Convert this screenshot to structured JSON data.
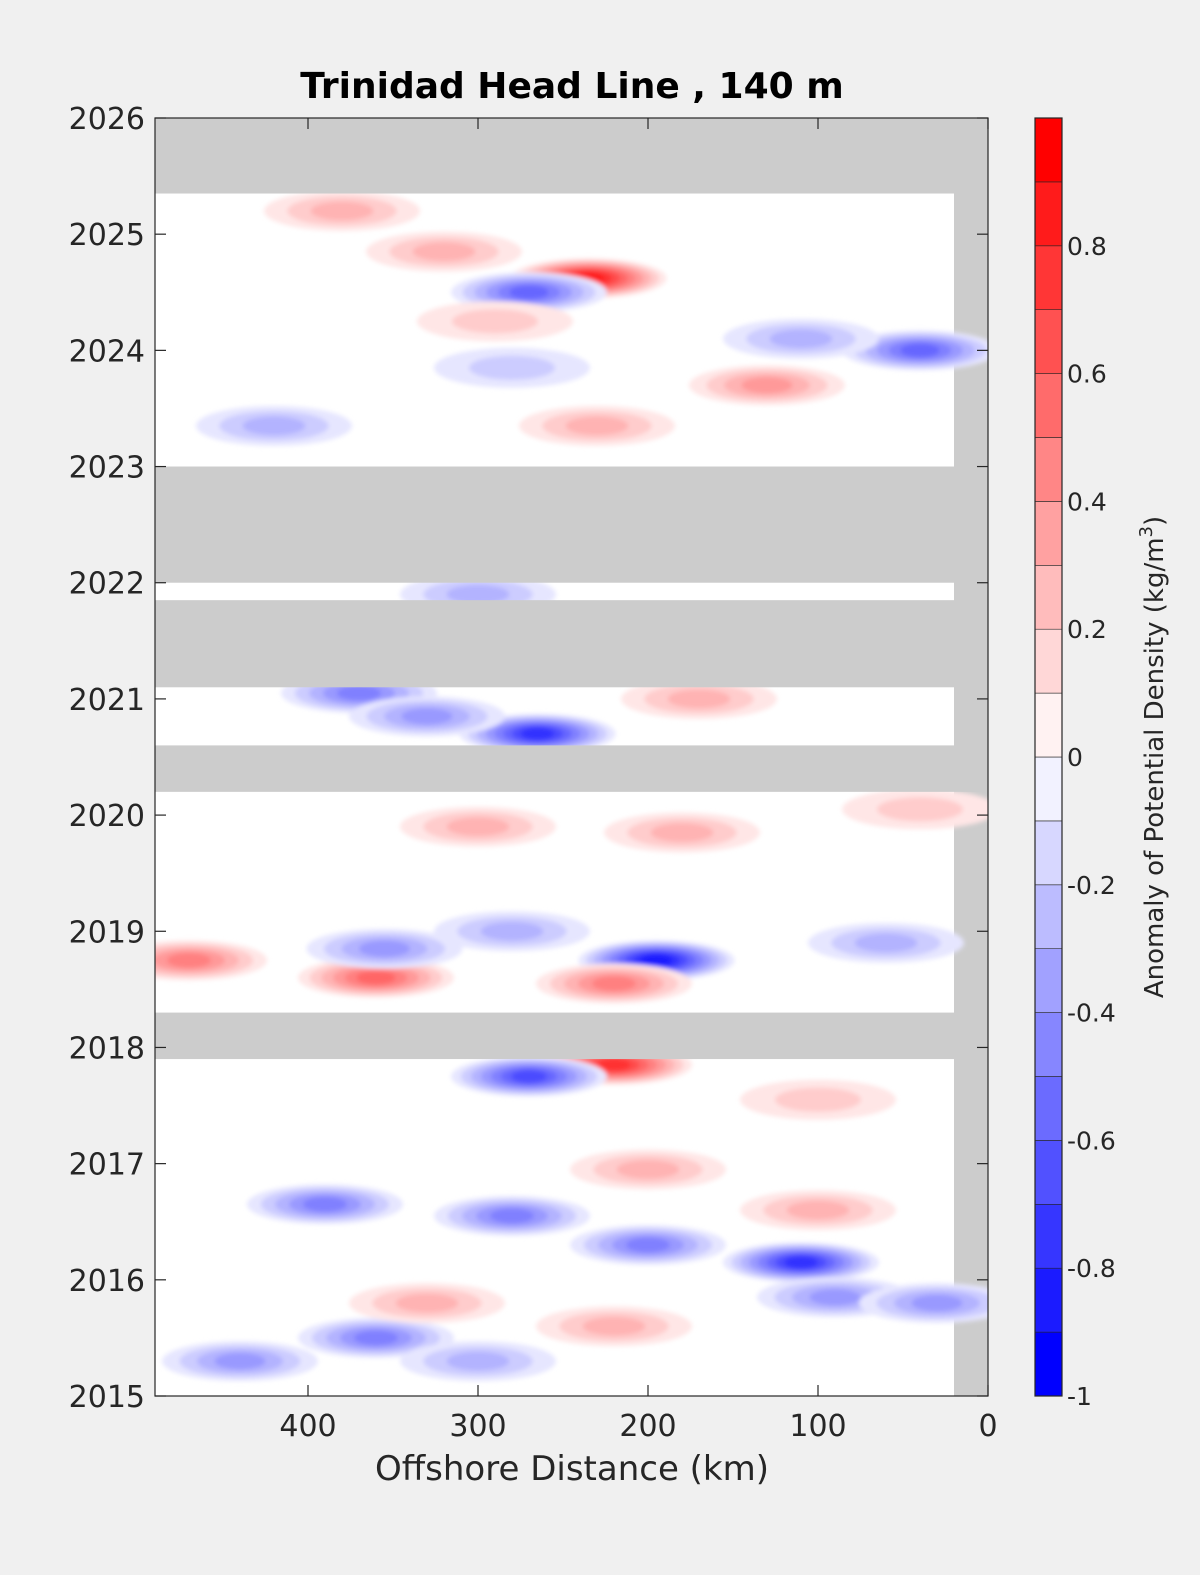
{
  "chart_data": {
    "type": "heatmap",
    "title": "Trinidad Head Line , 140 m",
    "xlabel": "Offshore Distance (km)",
    "ylabel": "",
    "xlim": [
      490,
      0
    ],
    "ylim": [
      2015,
      2026
    ],
    "x_reversed": true,
    "x_ticks": [
      400,
      300,
      200,
      100,
      0
    ],
    "y_ticks": [
      2015,
      2016,
      2017,
      2018,
      2019,
      2020,
      2021,
      2022,
      2023,
      2024,
      2025,
      2026
    ],
    "colorbar": {
      "label": "Anomaly of Potential Density (kg/m",
      "label_superscript": "3",
      "label_suffix": ")",
      "range": [
        -1,
        1
      ],
      "levels": 20,
      "tick_values": [
        -1,
        -0.8,
        -0.6,
        -0.4,
        -0.2,
        0,
        0.2,
        0.4,
        0.6,
        0.8
      ],
      "tick_labels": [
        "-1",
        "-0.8",
        "-0.6",
        "-0.4",
        "-0.2",
        "0",
        "0.2",
        "0.4",
        "0.6",
        "0.8"
      ],
      "low_color": "#0000ff",
      "mid_color": "#ffffff",
      "high_color": "#ff0000"
    },
    "no_data_color": "#cccccc",
    "data_extent": {
      "x_max_offshore_km": 490,
      "x_min_offshore_km": 20
    },
    "no_data_periods": [
      {
        "t0": 2025.35,
        "t1": 2026.0,
        "x_from": 490,
        "x_to": 0
      },
      {
        "t0": 2022.95,
        "t1": 2023.0,
        "x_from": 490,
        "x_to": 0
      },
      {
        "t0": 2022.0,
        "t1": 2023.0,
        "x_from": 490,
        "x_to": 0
      },
      {
        "t0": 2021.1,
        "t1": 2021.85,
        "x_from": 490,
        "x_to": 0
      },
      {
        "t0": 2020.2,
        "t1": 2020.6,
        "x_from": 490,
        "x_to": 0
      },
      {
        "t0": 2017.9,
        "t1": 2018.3,
        "x_from": 490,
        "x_to": 0
      }
    ],
    "anomalies": [
      {
        "x": 235,
        "t": 2024.62,
        "value": 0.9
      },
      {
        "x": 270,
        "t": 2024.5,
        "value": -0.6
      },
      {
        "x": 320,
        "t": 2024.85,
        "value": 0.3
      },
      {
        "x": 380,
        "t": 2025.2,
        "value": 0.25
      },
      {
        "x": 40,
        "t": 2024.0,
        "value": -0.6
      },
      {
        "x": 110,
        "t": 2024.1,
        "value": -0.3
      },
      {
        "x": 130,
        "t": 2023.7,
        "value": 0.4
      },
      {
        "x": 230,
        "t": 2023.35,
        "value": 0.35
      },
      {
        "x": 420,
        "t": 2023.35,
        "value": -0.3
      },
      {
        "x": 280,
        "t": 2023.85,
        "value": -0.2
      },
      {
        "x": 290,
        "t": 2024.25,
        "value": 0.2
      },
      {
        "x": 370,
        "t": 2021.05,
        "value": -0.5
      },
      {
        "x": 265,
        "t": 2020.7,
        "value": -0.8
      },
      {
        "x": 330,
        "t": 2020.85,
        "value": -0.4
      },
      {
        "x": 170,
        "t": 2021.0,
        "value": 0.25
      },
      {
        "x": 300,
        "t": 2021.9,
        "value": -0.3
      },
      {
        "x": 300,
        "t": 2019.9,
        "value": 0.35
      },
      {
        "x": 180,
        "t": 2019.85,
        "value": 0.25
      },
      {
        "x": 40,
        "t": 2020.05,
        "value": 0.2
      },
      {
        "x": 195,
        "t": 2018.75,
        "value": -0.85
      },
      {
        "x": 360,
        "t": 2018.6,
        "value": 0.6
      },
      {
        "x": 220,
        "t": 2018.55,
        "value": 0.45
      },
      {
        "x": 470,
        "t": 2018.75,
        "value": 0.5
      },
      {
        "x": 355,
        "t": 2018.85,
        "value": -0.4
      },
      {
        "x": 280,
        "t": 2019.0,
        "value": -0.35
      },
      {
        "x": 60,
        "t": 2018.9,
        "value": -0.25
      },
      {
        "x": 220,
        "t": 2017.85,
        "value": 0.8
      },
      {
        "x": 270,
        "t": 2017.75,
        "value": -0.7
      },
      {
        "x": 100,
        "t": 2017.55,
        "value": 0.2
      },
      {
        "x": 110,
        "t": 2016.15,
        "value": -0.8
      },
      {
        "x": 200,
        "t": 2016.3,
        "value": -0.5
      },
      {
        "x": 280,
        "t": 2016.55,
        "value": -0.45
      },
      {
        "x": 390,
        "t": 2016.65,
        "value": -0.5
      },
      {
        "x": 200,
        "t": 2016.95,
        "value": 0.35
      },
      {
        "x": 100,
        "t": 2016.6,
        "value": 0.25
      },
      {
        "x": 360,
        "t": 2015.5,
        "value": -0.45
      },
      {
        "x": 300,
        "t": 2015.3,
        "value": -0.35
      },
      {
        "x": 440,
        "t": 2015.3,
        "value": -0.4
      },
      {
        "x": 90,
        "t": 2015.85,
        "value": -0.4
      },
      {
        "x": 30,
        "t": 2015.8,
        "value": -0.4
      },
      {
        "x": 220,
        "t": 2015.6,
        "value": 0.35
      },
      {
        "x": 330,
        "t": 2015.8,
        "value": 0.25
      }
    ]
  }
}
